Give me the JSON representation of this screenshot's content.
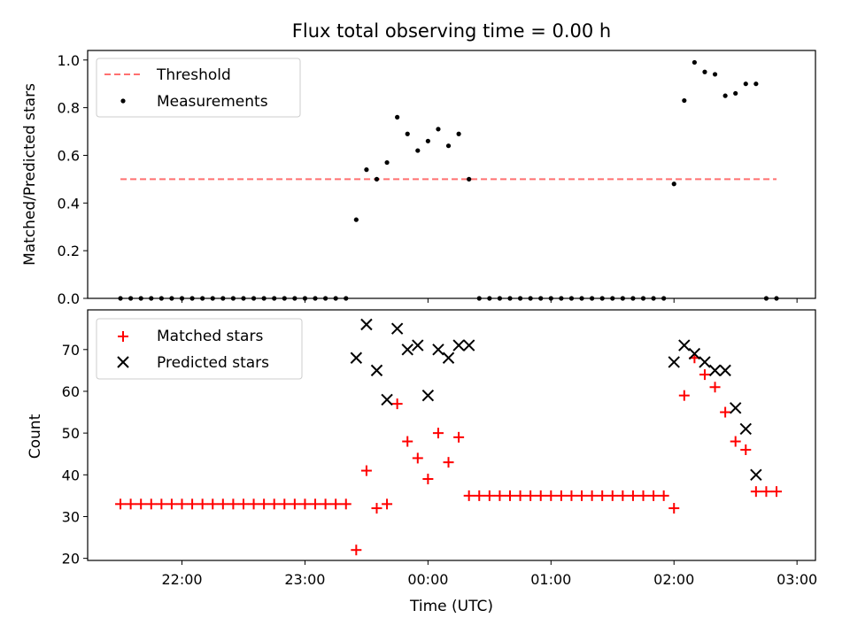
{
  "chart_data": [
    {
      "type": "line",
      "title": "Flux total observing time = 0.00 h",
      "xlabel": "",
      "ylabel": "Matched/Predicted stars",
      "xlim": [
        "21:14",
        "03:09"
      ],
      "ylim": [
        0.0,
        1.04
      ],
      "yticks": [
        "0.0",
        "0.2",
        "0.4",
        "0.6",
        "0.8",
        "1.0"
      ],
      "legend": {
        "location": "upper left",
        "entries": [
          "Threshold",
          "Measurements"
        ]
      },
      "colors": {
        "threshold": "#ff7070",
        "measurements": "#000000"
      },
      "series": [
        {
          "name": "Threshold",
          "style": "dashed line",
          "x": [
            "21:30",
            "02:50"
          ],
          "y": [
            0.5,
            0.5
          ]
        },
        {
          "name": "Measurements",
          "style": "scatter",
          "x": [
            "21:30",
            "21:35",
            "21:40",
            "21:45",
            "21:50",
            "21:55",
            "22:00",
            "22:05",
            "22:10",
            "22:15",
            "22:20",
            "22:25",
            "22:30",
            "22:35",
            "22:40",
            "22:45",
            "22:50",
            "22:55",
            "23:00",
            "23:05",
            "23:10",
            "23:15",
            "23:20",
            "23:25",
            "23:30",
            "23:35",
            "23:40",
            "23:45",
            "23:50",
            "23:55",
            "00:00",
            "00:05",
            "00:10",
            "00:15",
            "00:20",
            "00:25",
            "00:30",
            "00:35",
            "00:40",
            "00:45",
            "00:50",
            "00:55",
            "01:00",
            "01:05",
            "01:10",
            "01:15",
            "01:20",
            "01:25",
            "01:30",
            "01:35",
            "01:40",
            "01:45",
            "01:50",
            "01:55",
            "02:00",
            "02:05",
            "02:10",
            "02:15",
            "02:20",
            "02:25",
            "02:30",
            "02:35",
            "02:40",
            "02:45",
            "02:50"
          ],
          "y": [
            0,
            0,
            0,
            0,
            0,
            0,
            0,
            0,
            0,
            0,
            0,
            0,
            0,
            0,
            0,
            0,
            0,
            0,
            0,
            0,
            0,
            0,
            0,
            0.33,
            0.54,
            0.5,
            0.57,
            0.76,
            0.69,
            0.62,
            0.66,
            0.71,
            0.64,
            0.69,
            0.5,
            0,
            0,
            0,
            0,
            0,
            0,
            0,
            0,
            0,
            0,
            0,
            0,
            0,
            0,
            0,
            0,
            0,
            0,
            0,
            0.48,
            0.83,
            0.99,
            0.95,
            0.94,
            0.85,
            0.86,
            0.9,
            0.9,
            0,
            0
          ]
        }
      ]
    },
    {
      "type": "scatter",
      "title": "",
      "xlabel": "Time (UTC)",
      "ylabel": "Count",
      "xlim": [
        "21:14",
        "03:09"
      ],
      "ylim": [
        19.5,
        79.5
      ],
      "xticks": [
        "22:00",
        "23:00",
        "00:00",
        "01:00",
        "02:00",
        "03:00"
      ],
      "yticks": [
        "20",
        "30",
        "40",
        "50",
        "60",
        "70"
      ],
      "legend": {
        "location": "upper left",
        "entries": [
          "Matched stars",
          "Predicted stars"
        ]
      },
      "colors": {
        "matched": "#ff0000",
        "predicted": "#000000"
      },
      "series": [
        {
          "name": "Matched stars",
          "marker": "plus",
          "x": [
            "21:30",
            "21:35",
            "21:40",
            "21:45",
            "21:50",
            "21:55",
            "22:00",
            "22:05",
            "22:10",
            "22:15",
            "22:20",
            "22:25",
            "22:30",
            "22:35",
            "22:40",
            "22:45",
            "22:50",
            "22:55",
            "23:00",
            "23:05",
            "23:10",
            "23:15",
            "23:20",
            "23:25",
            "23:30",
            "23:35",
            "23:40",
            "23:45",
            "23:50",
            "23:55",
            "00:00",
            "00:05",
            "00:10",
            "00:15",
            "00:20",
            "00:25",
            "00:30",
            "00:35",
            "00:40",
            "00:45",
            "00:50",
            "00:55",
            "01:00",
            "01:05",
            "01:10",
            "01:15",
            "01:20",
            "01:25",
            "01:30",
            "01:35",
            "01:40",
            "01:45",
            "01:50",
            "01:55",
            "02:00",
            "02:05",
            "02:10",
            "02:15",
            "02:20",
            "02:25",
            "02:30",
            "02:35",
            "02:40",
            "02:45",
            "02:50"
          ],
          "y": [
            33,
            33,
            33,
            33,
            33,
            33,
            33,
            33,
            33,
            33,
            33,
            33,
            33,
            33,
            33,
            33,
            33,
            33,
            33,
            33,
            33,
            33,
            33,
            22,
            41,
            32,
            33,
            57,
            48,
            44,
            39,
            50,
            43,
            49,
            35,
            35,
            35,
            35,
            35,
            35,
            35,
            35,
            35,
            35,
            35,
            35,
            35,
            35,
            35,
            35,
            35,
            35,
            35,
            35,
            32,
            59,
            68,
            64,
            61,
            55,
            48,
            46,
            36,
            36,
            36
          ]
        },
        {
          "name": "Predicted stars",
          "marker": "x",
          "x": [
            "23:25",
            "23:30",
            "23:35",
            "23:40",
            "23:45",
            "23:50",
            "23:55",
            "00:00",
            "00:05",
            "00:10",
            "00:15",
            "00:20",
            "02:00",
            "02:05",
            "02:10",
            "02:15",
            "02:20",
            "02:25",
            "02:30",
            "02:35",
            "02:40"
          ],
          "y": [
            68,
            76,
            65,
            58,
            75,
            70,
            71,
            59,
            70,
            68,
            71,
            71,
            67,
            71,
            69,
            67,
            65,
            65,
            56,
            51,
            40
          ]
        }
      ]
    }
  ]
}
